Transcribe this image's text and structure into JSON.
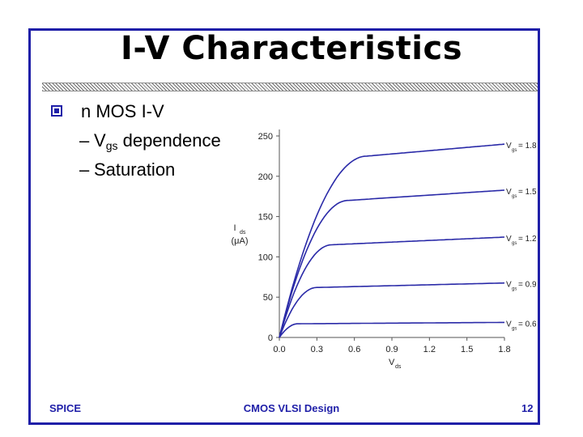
{
  "slide": {
    "title": "I-V Characteristics",
    "bullets": {
      "main": "n MOS I-V",
      "sub1_prefix": "V",
      "sub1_sub": "gs",
      "sub1_suffix": " dependence",
      "sub2": "Saturation",
      "dash": "–"
    },
    "footer": {
      "left": "SPICE",
      "center": "CMOS VLSI Design",
      "right": "12"
    }
  },
  "colors": {
    "accent": "#1f1fa8",
    "curve": "#2a2aa8"
  },
  "chart_data": {
    "type": "line",
    "x_axis": {
      "label": "V",
      "label_sub": "ds",
      "ticks": [
        "0.0",
        "0.3",
        "0.6",
        "0.9",
        "1.2",
        "1.5",
        "1.8"
      ],
      "range": [
        0,
        1.8
      ]
    },
    "y_axis": {
      "label": "I",
      "label_sub": "ds",
      "unit": "(μA)",
      "ticks": [
        "0",
        "50",
        "100",
        "150",
        "200",
        "250"
      ],
      "range": [
        0,
        250
      ]
    },
    "series": [
      {
        "name": "V gs = 1.8",
        "sat": 225,
        "vsat": 0.7
      },
      {
        "name": "V gs = 1.5",
        "sat": 170,
        "vsat": 0.55
      },
      {
        "name": "V gs = 1.2",
        "sat": 115,
        "vsat": 0.42
      },
      {
        "name": "V gs = 0.9",
        "sat": 62,
        "vsat": 0.3
      },
      {
        "name": "V gs = 0.6",
        "sat": 17,
        "vsat": 0.15
      }
    ],
    "curve_labels": [
      {
        "v": "V",
        "sub": "gs",
        "rest": " = 1.8"
      },
      {
        "v": "V",
        "sub": "gs",
        "rest": " = 1.5"
      },
      {
        "v": "V",
        "sub": "gs",
        "rest": " = 1.2"
      },
      {
        "v": "V",
        "sub": "gs",
        "rest": " = 0.9"
      },
      {
        "v": "V",
        "sub": "gs",
        "rest": " = 0.6"
      }
    ]
  }
}
